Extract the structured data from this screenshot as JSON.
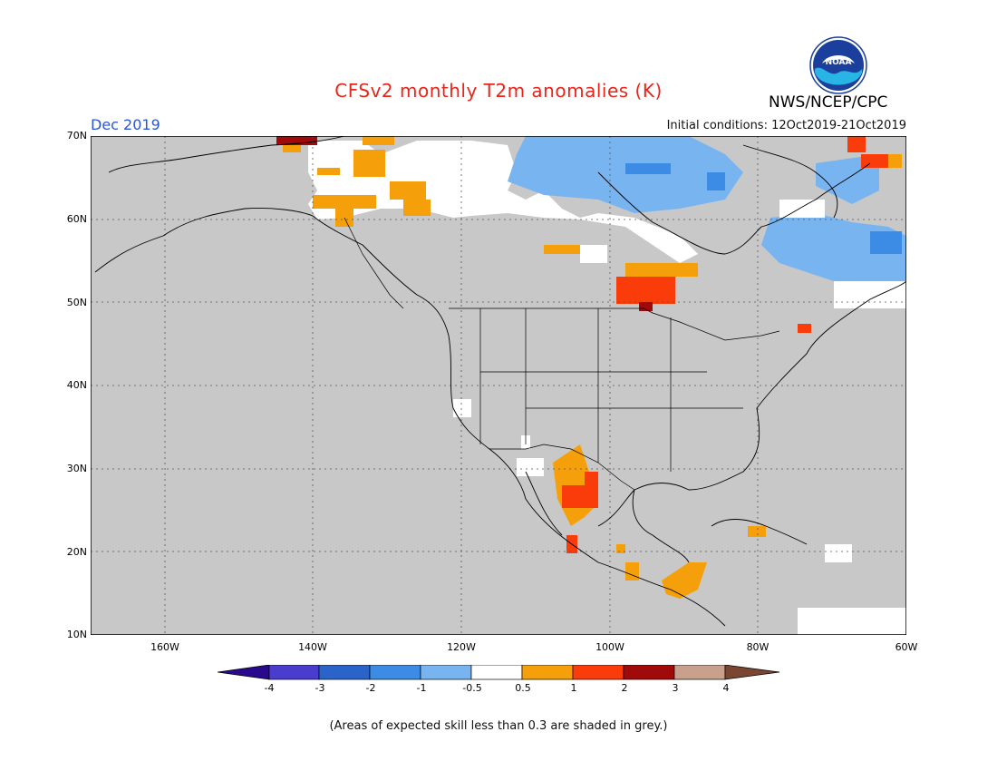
{
  "title": "CFSv2 monthly T2m anomalies (K)",
  "org": "NWS/NCEP/CPC",
  "logo_text": "NOAA",
  "period": "Dec 2019",
  "initial_conditions": "Initial conditions: 12Oct2019-21Oct2019",
  "lat_labels": [
    "70N",
    "60N",
    "50N",
    "40N",
    "30N",
    "20N",
    "10N"
  ],
  "lon_labels": [
    "160W",
    "140W",
    "120W",
    "100W",
    "80W",
    "60W"
  ],
  "colorbar": {
    "labels": [
      "-4",
      "-3",
      "-2",
      "-1",
      "-0.5",
      "0.5",
      "1",
      "2",
      "3",
      "4"
    ],
    "colors": [
      "#2a0a8c",
      "#4a3ccc",
      "#2a64c8",
      "#3c8ce6",
      "#78b4f0",
      "#ffffff",
      "#f5a00a",
      "#fa3c0a",
      "#a00a0a",
      "#c8a08c",
      "#7a4632"
    ]
  },
  "map": {
    "background": "#c8c8c8",
    "lat_range": [
      10,
      70
    ],
    "lon_range": [
      -170,
      -60
    ]
  },
  "note": "(Areas of expected skill less than 0.3 are shaded in grey.)"
}
